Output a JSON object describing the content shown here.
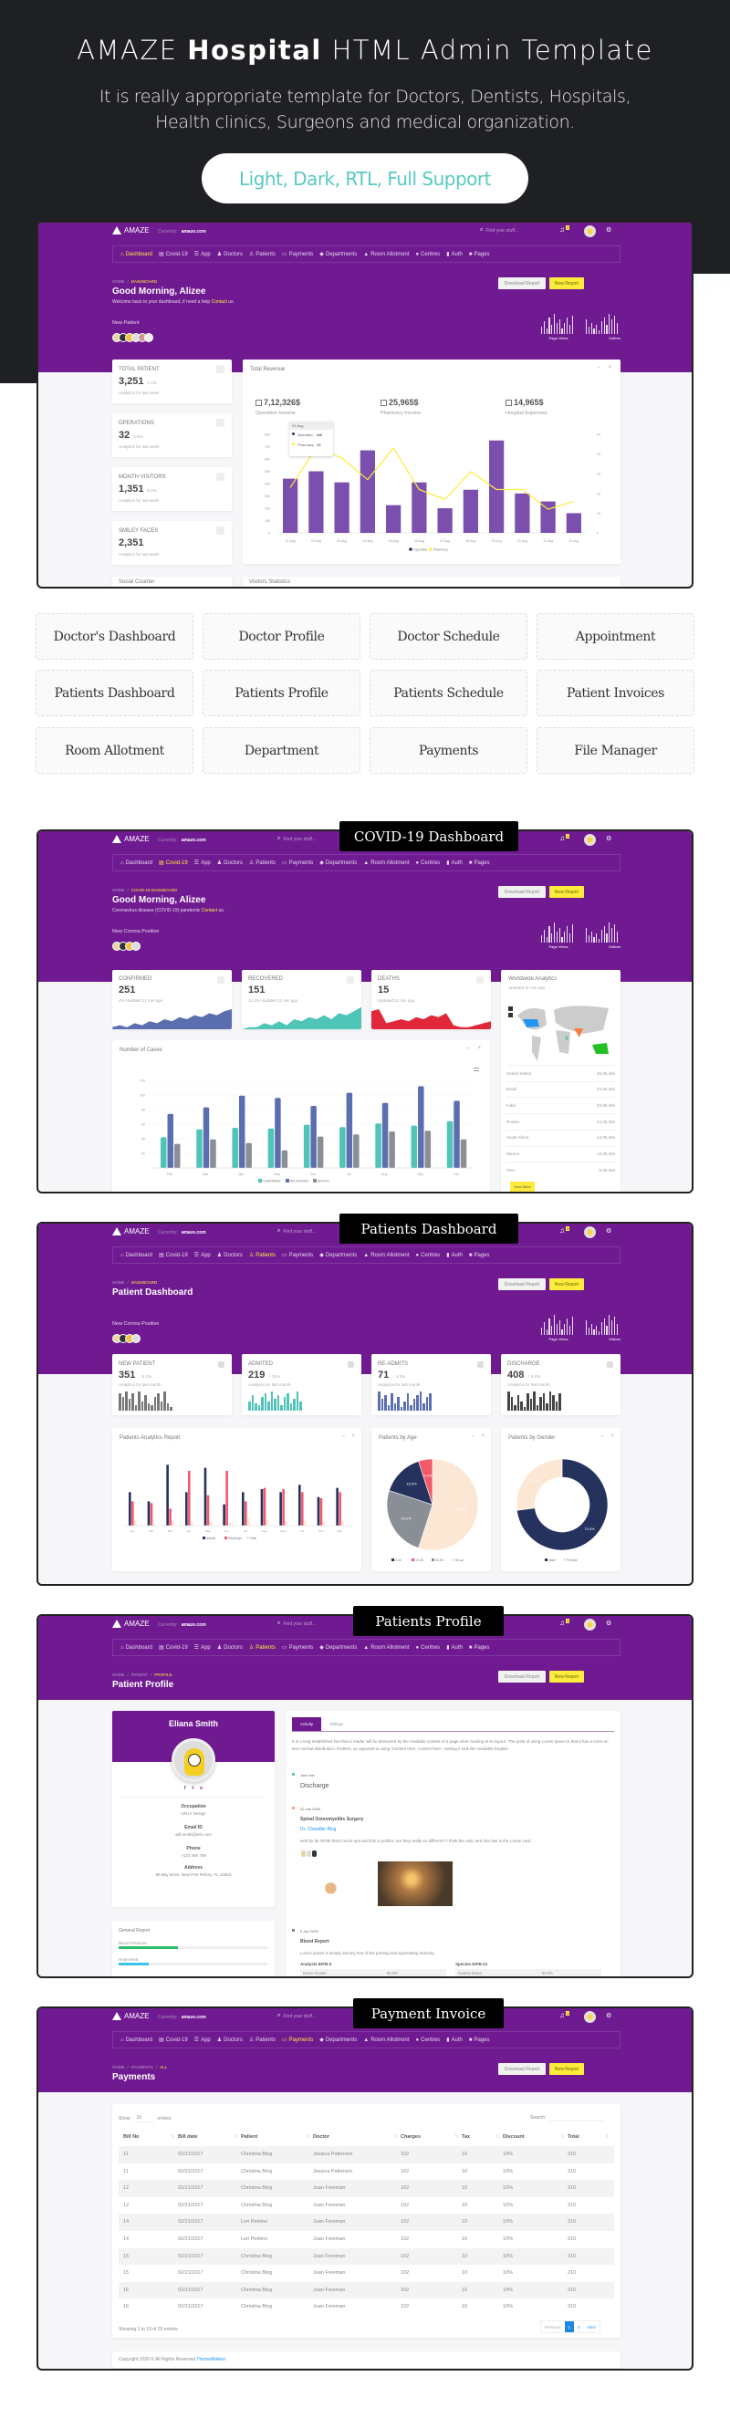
{
  "colors": {
    "purple": "#701a91",
    "yellow": "#ffeb3b",
    "bar_purple": "#7a4fae",
    "teal": "#4fc4b7",
    "blue": "#5b6fb0",
    "grey": "#8a8f96",
    "dark_grey": "#555a60",
    "navy": "#25325e",
    "red": "#f25a6c",
    "cream": "#fbe7d3",
    "death_red": "#e0283a",
    "hero_bg": "#1f2023",
    "pill_text": "#58c9c1",
    "link_blue": "#2196f3"
  },
  "hero": {
    "title_pre": "AMAZE ",
    "title_bold": "Hospital",
    "title_post": " HTML Admin Template",
    "subtitle_1": "It is really appropriate template for Doctors, Dentists, Hospitals,",
    "subtitle_2": "Health clinics, Surgeons and medical organization.",
    "pill": "Light, Dark, RTL, Full Support"
  },
  "pages": [
    "Doctor's Dashboard",
    "Doctor Profile",
    "Doctor Schedule",
    "Appointment",
    "Patients Dashboard",
    "Patients Profile",
    "Patients Schedule",
    "Patient Invoices",
    "Room Allotment",
    "Department",
    "Payments",
    "File Manager"
  ],
  "chrome": {
    "logo": "AMAZE",
    "currently": "Currently:",
    "domain": "amaze.com",
    "search_placeholder": "Find your stuff...",
    "notification_count": "1",
    "download_report": "Download Report",
    "new_report": "New Report",
    "page_views": "Page Views",
    "visitors": "Visitors",
    "page_views_bars": [
      4,
      7,
      3,
      9,
      5,
      11,
      6,
      8,
      3,
      6,
      9,
      5,
      10
    ],
    "visitors_bars": [
      8,
      4,
      6,
      3,
      5,
      2,
      7,
      9,
      5,
      11,
      8,
      10,
      6
    ],
    "nav": [
      {
        "label": "Dashboard",
        "icon": "home-icon",
        "glyph": "⌂"
      },
      {
        "label": "Covid-19",
        "icon": "clipboard-icon",
        "glyph": "▤"
      },
      {
        "label": "App",
        "icon": "grid-icon",
        "glyph": "☰"
      },
      {
        "label": "Doctors",
        "icon": "users-icon",
        "glyph": "♟"
      },
      {
        "label": "Patients",
        "icon": "user-icon",
        "glyph": "♙"
      },
      {
        "label": "Payments",
        "icon": "credit-card-icon",
        "glyph": "▭"
      },
      {
        "label": "Departments",
        "icon": "tag-icon",
        "glyph": "◆"
      },
      {
        "label": "Room Allotment",
        "icon": "bed-icon",
        "glyph": "▲"
      },
      {
        "label": "Centres",
        "icon": "globe-icon",
        "glyph": "●"
      },
      {
        "label": "Auth",
        "icon": "lock-icon",
        "glyph": "▮"
      },
      {
        "label": "Pages",
        "icon": "folder-icon",
        "glyph": "■"
      }
    ]
  },
  "frames": {
    "dashboard": {
      "active_nav": 0,
      "breadcrumb": [
        "HOME",
        "DASHBOARD"
      ],
      "title": "Good Morning, Alizee",
      "subtitle": "Welcome back to your dashboard, if need a help ",
      "subtitle_link": "Contact",
      "subtitle_end": " us.",
      "group_label": "New Patient",
      "avatar_count": 6,
      "stats": [
        {
          "label": "TOTAL PATIENT",
          "value": "3,251",
          "change": "1.1%",
          "note": "Analytics for last week",
          "icon": "users-icon"
        },
        {
          "label": "OPERATIONS",
          "value": "32",
          "change": "1.5%",
          "note": "Analytics for last week",
          "icon": "hospital-icon"
        },
        {
          "label": "MONTH VISITORS",
          "value": "1,351",
          "change": "6.2%",
          "note": "Analytics for last week",
          "icon": "eye-icon"
        },
        {
          "label": "SMILEY FACES",
          "value": "2,351",
          "change": "",
          "note": "Analytics for last week",
          "icon": "smile-icon"
        }
      ],
      "revenue": {
        "title": "Total Revenue",
        "summary": [
          {
            "value": "7,12,326$",
            "label": "Operation Income"
          },
          {
            "value": "25,965$",
            "label": "Pharmacy Income"
          },
          {
            "value": "14,965$",
            "label": "Hospital Expenses"
          }
        ],
        "tooltip": {
          "date": "01 Aug",
          "rows": [
            {
              "name": "Operation",
              "value": "440"
            },
            {
              "name": "Pharmacy",
              "value": "23"
            }
          ]
        }
      },
      "bottom_cards": [
        "Social Counter",
        "Visitors Statistics"
      ]
    },
    "covid": {
      "tag": "COVID-19 Dashboard",
      "active_nav": 1,
      "breadcrumb": [
        "HOME",
        "COVID-19 DASHBOARD"
      ],
      "title": "Good Morning, Alizee",
      "subtitle": "Coronavirus disease (COVID-19) pandemic ",
      "subtitle_link": "Contact",
      "subtitle_end": " us.",
      "group_label": "New Corona Positive",
      "avatar_count": 4,
      "stats": [
        {
          "label": "CONFIRMED",
          "value": "251",
          "change": "4% Updated 11 min ago",
          "color": "#5b6fb0",
          "area": [
            1,
            2,
            1,
            3,
            2,
            4,
            3,
            5,
            4,
            6,
            5,
            7,
            6,
            8,
            7,
            9,
            10
          ]
        },
        {
          "label": "RECOVERED",
          "value": "151",
          "change": "14.1% Updated 11 min ago",
          "color": "#4fc4b7",
          "area": [
            0,
            1,
            1,
            3,
            2,
            4,
            2,
            5,
            4,
            6,
            5,
            7,
            5,
            8,
            7,
            9,
            11
          ]
        },
        {
          "label": "DEATHS",
          "value": "15",
          "change": "Updated 11 min ago",
          "color": "#e0283a",
          "area": [
            9,
            10,
            3,
            4,
            5,
            4,
            6,
            5,
            7,
            6,
            8,
            2,
            1,
            1,
            2,
            3,
            4
          ]
        }
      ],
      "cases_title": "Number of Cases",
      "world": {
        "title": "Worldwide Analytics",
        "updated": "Updated 11 min ago",
        "countries": [
          {
            "name": "United States",
            "value": "45,05,454"
          },
          {
            "name": "Brazil",
            "value": "23,05,454"
          },
          {
            "name": "India",
            "value": "23,05,454"
          },
          {
            "name": "Russia",
            "value": "24,05,454"
          },
          {
            "name": "South Africa",
            "value": "14,05,454"
          },
          {
            "name": "Mexico",
            "value": "12,05,454"
          },
          {
            "name": "Peru",
            "value": "9,05,454"
          }
        ],
        "view_more": "View More"
      }
    },
    "patients_dashboard": {
      "tag": "Patients Dashboard",
      "active_nav": 4,
      "breadcrumb": [
        "HOME",
        "DASHBOARD"
      ],
      "title": "Patient Dashboard",
      "group_label": "New Corona Positive",
      "avatar_count": 4,
      "stats": [
        {
          "label": "NEW PATIENT",
          "value": "351",
          "change": "↑ 8.1%",
          "note": "Analytics for last month",
          "color": "#777",
          "bars": [
            9,
            7,
            10,
            6,
            9,
            3,
            10,
            5,
            8,
            4,
            3,
            7,
            9,
            5,
            10,
            4,
            2
          ]
        },
        {
          "label": "ADMITED",
          "value": "219",
          "change": "↑ 11%",
          "note": "Analytics for last month",
          "color": "#4fc4b7",
          "bars": [
            5,
            8,
            4,
            3,
            7,
            9,
            5,
            10,
            6,
            8,
            3,
            7,
            9,
            4,
            6,
            10,
            5
          ]
        },
        {
          "label": "RE-ADMITS",
          "value": "71",
          "change": "↓ 4.2%",
          "note": "Analytics for last month",
          "color": "#5b6fb0",
          "bars": [
            10,
            6,
            8,
            3,
            9,
            4,
            7,
            2,
            5,
            9,
            3,
            6,
            8,
            10,
            4,
            7,
            9
          ]
        },
        {
          "label": "DISCHARGE",
          "value": "408",
          "change": "↑ 5.2%",
          "note": "Analytics for last month",
          "color": "#444",
          "bars": [
            10,
            7,
            3,
            8,
            5,
            2,
            9,
            6,
            10,
            3,
            7,
            9,
            4,
            10,
            8,
            5,
            9
          ]
        }
      ],
      "chart_titles": [
        "Patients Analytics Report",
        "Patients by Age",
        "Patients by Gender"
      ]
    },
    "patient_profile": {
      "tag": "Patients Profile",
      "active_nav": 4,
      "breadcrumb": [
        "HOME",
        "PATIENT",
        "PROFILE"
      ],
      "title": "Patient Profile",
      "profile": {
        "name": "Eliana Smith",
        "fields": [
          {
            "label": "Occupation",
            "value": "UI/UX Design"
          },
          {
            "label": "Email ID",
            "value": "will.smith@info.com"
          },
          {
            "label": "Phone",
            "value": "+123 456 789"
          },
          {
            "label": "Address",
            "value": "85 Bay Drive, New Port Richey, FL 34653"
          }
        ],
        "social": [
          {
            "icon": "facebook-icon",
            "glyph": "f"
          },
          {
            "icon": "twitter-icon",
            "glyph": "t"
          },
          {
            "icon": "instagram-icon",
            "glyph": "◘"
          }
        ]
      },
      "general_report": {
        "title": "General Report",
        "items": [
          {
            "label": "Blood Pressure",
            "percent": 40,
            "color": "#2ebd6b"
          },
          {
            "label": "Heart Beat",
            "percent": 20,
            "color": "#3ec3ea"
          }
        ]
      },
      "tabs": [
        "Activity",
        "Billings"
      ],
      "intro": "It is a long established fact that a reader will be distracted by the readable content of a page when looking at its layout. The point of using Lorem Ipsum is that it has a more-or-less normal distribution of letters, as opposed to using 'Content here, content here', making it look like readable English.",
      "timeline": [
        {
          "time": "Just now",
          "title": "Discharge",
          "dot": "#2ebd6b"
        },
        {
          "time": "02 Jan 2020",
          "title": "Spinal Osteomyelitis Surgery",
          "doctor": "Dr. Chandler Bing",
          "text": "web by far While that's mock-ups and this is politics, are they really so different? I think the only card she has is the Lorem card.",
          "dot": "#ff7b3a"
        },
        {
          "time": "6 Jan 2020",
          "title": "Blood Report",
          "text": "Lorem Ipsum is simply dummy text of the printing and typesetting industry.",
          "dot": "#555",
          "analysis": [
            {
              "head": "Analysis IDFB-3",
              "row": "Down Cluster",
              "value": "90.0%"
            },
            {
              "head": "Species IDFB-12",
              "row": "Coarse Down",
              "value": "90.0%"
            }
          ]
        }
      ]
    },
    "payments": {
      "tag": "Payment Invoice",
      "active_nav": 5,
      "breadcrumb": [
        "HOME",
        "PAYMENTS",
        "ALL"
      ],
      "title": "Payments",
      "show": "Show",
      "entries_value": "10",
      "entries": "entries",
      "search": "Search:",
      "columns": [
        "Bill No",
        "Bill date",
        "Patient",
        "Doctor",
        "Charges",
        "Tax",
        "Discount",
        "Total"
      ],
      "rows": [
        [
          "11",
          "02/21/2017",
          "Christina Bing",
          "Jessica Patterson",
          "102",
          "10",
          "10%",
          "210"
        ],
        [
          "11",
          "02/21/2017",
          "Christina Bing",
          "Jessica Patterson",
          "102",
          "10",
          "10%",
          "210"
        ],
        [
          "12",
          "02/21/2017",
          "Christina Bing",
          "Juan Freeman",
          "102",
          "10",
          "10%",
          "210"
        ],
        [
          "12",
          "02/21/2017",
          "Christina Bing",
          "Juan Freeman",
          "102",
          "10",
          "10%",
          "210"
        ],
        [
          "14",
          "02/21/2017",
          "Lori Perkins",
          "Juan Freeman",
          "102",
          "10",
          "10%",
          "210"
        ],
        [
          "14",
          "02/21/2017",
          "Lori Perkins",
          "Juan Freeman",
          "102",
          "10",
          "10%",
          "210"
        ],
        [
          "15",
          "02/21/2017",
          "Christina Bing",
          "Juan Freeman",
          "102",
          "10",
          "10%",
          "210"
        ],
        [
          "15",
          "02/21/2017",
          "Christina Bing",
          "Juan Freeman",
          "102",
          "10",
          "10%",
          "210"
        ],
        [
          "16",
          "02/21/2017",
          "Christina Bing",
          "Juan Freeman",
          "102",
          "10",
          "10%",
          "210"
        ],
        [
          "16",
          "02/21/2017",
          "Christina Bing",
          "Juan Freeman",
          "102",
          "10",
          "10%",
          "210"
        ]
      ],
      "showing": "Showing 1 to 10 of 20 entries",
      "pagination": [
        "Previous",
        "1",
        "2",
        "Next"
      ],
      "current_page": "1",
      "copyright": "Copyright 2020 © All Rights Reserved. ",
      "copyright_link": "ThemeMakker"
    }
  },
  "chart_data": [
    {
      "type": "bar+line",
      "title": "Total Revenue",
      "categories": [
        "01 Aug",
        "02 Aug",
        "03 Aug",
        "04 Aug",
        "05 Aug",
        "06 Aug",
        "07 Aug",
        "08 Aug",
        "09 Aug",
        "10 Aug",
        "11 Aug",
        "12 Aug"
      ],
      "series": [
        {
          "name": "Operation",
          "type": "bar",
          "axis": "left",
          "values": [
            440,
            500,
            410,
            670,
            225,
            410,
            200,
            350,
            750,
            320,
            255,
            160
          ]
        },
        {
          "name": "Pharmacy",
          "type": "line",
          "axis": "right",
          "values": [
            23,
            43,
            38,
            27,
            43,
            22,
            17,
            31,
            22,
            22,
            12,
            16
          ]
        }
      ],
      "ylim": [
        0,
        800
      ],
      "yticks": [
        0,
        100,
        200,
        300,
        400,
        500,
        600,
        700,
        800
      ],
      "y2lim": [
        0,
        50
      ],
      "y2ticks": [
        0,
        10,
        20,
        30,
        40,
        50
      ],
      "legend": "bottom",
      "grid": false
    },
    {
      "type": "bar",
      "title": "Number of Cases",
      "categories": [
        "Feb",
        "Mar",
        "Apr",
        "May",
        "Jun",
        "Jul",
        "Aug",
        "Sep",
        "Oct"
      ],
      "series": [
        {
          "name": "CONFIRMED",
          "values": [
            42,
            53,
            55,
            54,
            59,
            56,
            61,
            58,
            64
          ]
        },
        {
          "name": "RECOVERED",
          "values": [
            74,
            83,
            99,
            96,
            85,
            103,
            89,
            112,
            92
          ]
        },
        {
          "name": "DEATHS",
          "values": [
            33,
            39,
            34,
            24,
            43,
            46,
            50,
            51,
            39
          ]
        }
      ],
      "ylim": [
        0,
        120
      ],
      "yticks": [
        20,
        40,
        60,
        80,
        100,
        120
      ],
      "legend": "bottom",
      "grid": true
    },
    {
      "type": "bar",
      "title": "Patients Analytics Report",
      "categories": [
        "Jan",
        "Feb",
        "Mar",
        "Apr",
        "May",
        "Jun",
        "Jul",
        "Aug",
        "Sept",
        "Oct",
        "Nov",
        "Dec"
      ],
      "series": [
        {
          "name": "Admits",
          "values": [
            55,
            40,
            100,
            55,
            95,
            35,
            55,
            60,
            55,
            67,
            47,
            62
          ]
        },
        {
          "name": "Discharge",
          "values": [
            40,
            37,
            28,
            90,
            50,
            90,
            40,
            62,
            60,
            55,
            45,
            55
          ]
        },
        {
          "name": "Falls",
          "values": [
            8,
            3,
            8,
            6,
            7,
            5,
            12,
            10,
            7,
            8,
            6,
            7
          ]
        }
      ],
      "ylim": [
        0,
        105
      ],
      "legend": "bottom"
    },
    {
      "type": "pie",
      "title": "Patients by Age",
      "slices": [
        {
          "name": "0-10",
          "value": 15.0
        },
        {
          "name": "10-30",
          "value": 5.0
        },
        {
          "name": "30-50",
          "value": 25.0
        },
        {
          "name": "50-up",
          "value": 55.0
        }
      ],
      "legend": "bottom"
    },
    {
      "type": "donut",
      "title": "Patients by Gender",
      "slices": [
        {
          "name": "Male",
          "value": 73.0
        },
        {
          "name": "Female",
          "value": 27.0
        }
      ],
      "legend": "bottom"
    }
  ]
}
